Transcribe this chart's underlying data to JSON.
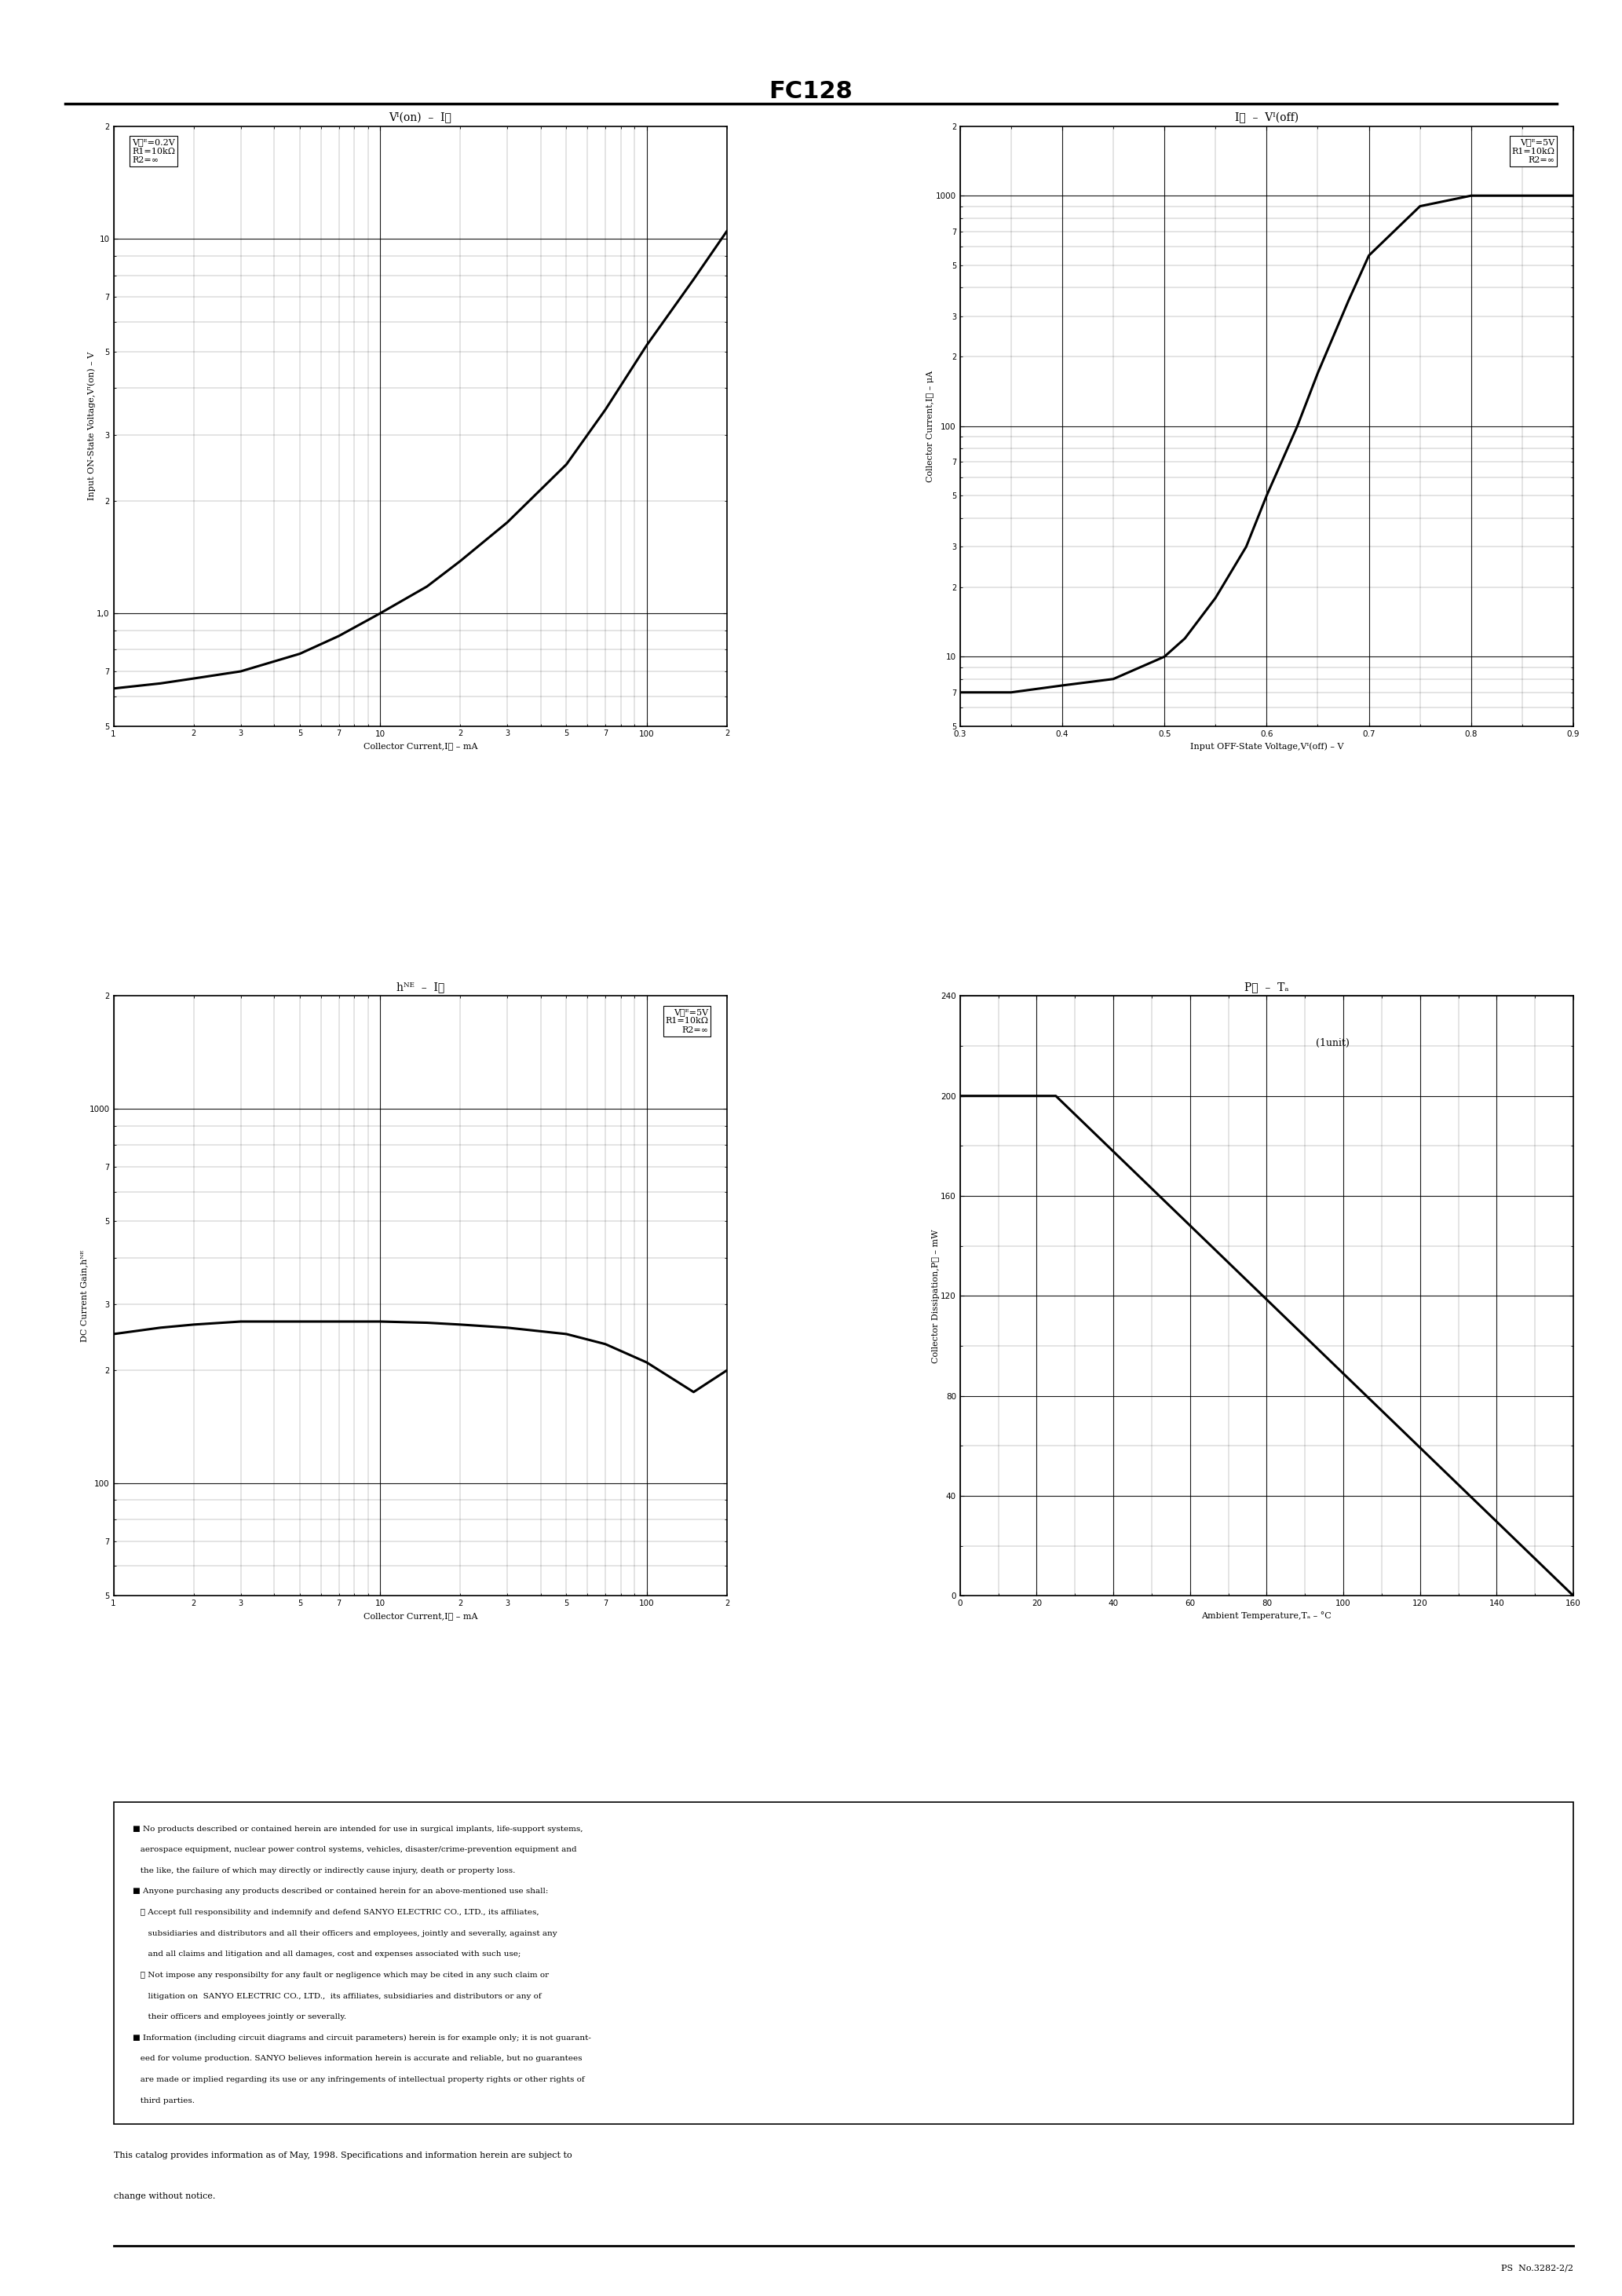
{
  "title": "FC128",
  "bg_color": "#ffffff",
  "plot1": {
    "title": "Vᴵ(on)  –  Iⲟ",
    "xlabel": "Collector Current,Iⲟ – mA",
    "ylabel": "Input ON-State Voltage,Vᴵ(on) – V",
    "legend_lines": [
      "VⲞᴱ=0.2V",
      "R1=10kΩ",
      "R2=∞"
    ],
    "xmin": 1.0,
    "xmax": 200,
    "ymin": 0.5,
    "ymax": 20,
    "curve_x": [
      1.0,
      1.5,
      2.0,
      3.0,
      5.0,
      7.0,
      10,
      15,
      20,
      30,
      50,
      70,
      100,
      150,
      200
    ],
    "curve_y": [
      0.63,
      0.65,
      0.67,
      0.7,
      0.78,
      0.87,
      1.0,
      1.18,
      1.38,
      1.75,
      2.5,
      3.5,
      5.2,
      7.8,
      10.5
    ]
  },
  "plot2": {
    "title": "Iⲟ  –  Vᴵ(off)",
    "xlabel": "Input OFF-State Voltage,Vᴵ(off) – V",
    "ylabel": "Collector Current,Iⲟ – μA",
    "legend_lines": [
      "VⲞᴱ=5V",
      "R1=10kΩ",
      "R2=∞"
    ],
    "xmin": 0.3,
    "xmax": 0.9,
    "ymin": 5,
    "ymax": 2000,
    "curve_x": [
      0.3,
      0.35,
      0.4,
      0.45,
      0.5,
      0.52,
      0.55,
      0.58,
      0.6,
      0.63,
      0.65,
      0.68,
      0.7,
      0.75,
      0.8,
      0.85,
      0.9
    ],
    "curve_y": [
      7,
      7,
      7.5,
      8,
      10,
      12,
      18,
      30,
      50,
      100,
      170,
      350,
      550,
      900,
      1000,
      1000,
      1000
    ]
  },
  "plot3": {
    "title": "hᴺᴱ  –  Iⲟ",
    "xlabel": "Collector Current,Iⲟ – mA",
    "ylabel": "DC Current Gain,hᴺᴱ",
    "legend_lines": [
      "VⲞᴱ=5V",
      "R1=10kΩ",
      "R2=∞"
    ],
    "xmin": 1.0,
    "xmax": 200,
    "ymin": 50,
    "ymax": 2000,
    "curve_x": [
      1.0,
      1.5,
      2.0,
      3.0,
      5.0,
      7.0,
      10,
      15,
      20,
      30,
      50,
      70,
      100,
      150,
      200
    ],
    "curve_y": [
      250,
      260,
      265,
      270,
      270,
      270,
      270,
      268,
      265,
      260,
      250,
      235,
      210,
      175,
      200
    ]
  },
  "plot4": {
    "title": "Pⲟ  –  Tₐ",
    "xlabel": "Ambient Temperature,Tₐ – °C",
    "ylabel": "Collector Dissipation,Pⲟ – mW",
    "annotation": "(1unit)",
    "xmin": 0,
    "xmax": 160,
    "ymin": 0,
    "ymax": 240,
    "yticks": [
      0,
      40,
      80,
      120,
      160,
      200,
      240
    ],
    "xticks": [
      0,
      20,
      40,
      60,
      80,
      100,
      120,
      140,
      160
    ],
    "curve_x": [
      0,
      25,
      160
    ],
    "curve_y": [
      200,
      200,
      0
    ]
  },
  "disclaimer": {
    "box_lines": [
      "■ No products described or contained herein are intended for use in surgical implants, life-support systems,",
      "   aerospace equipment, nuclear power control systems, vehicles, disaster/crime-prevention equipment and",
      "   the like, the failure of which may directly or indirectly cause injury, death or property loss.",
      "■ Anyone purchasing any products described or contained herein for an above-mentioned use shall:",
      "   ① Accept full responsibility and indemnify and defend SANYO ELECTRIC CO., LTD., its affiliates,",
      "      subsidiaries and distributors and all their officers and employees, jointly and severally, against any",
      "      and all claims and litigation and all damages, cost and expenses associated with such use;",
      "   ② Not impose any responsibilty for any fault or negligence which may be cited in any such claim or",
      "      litigation on  SANYO ELECTRIC CO., LTD.,  its affiliates, subsidiaries and distributors or any of",
      "      their officers and employees jointly or severally.",
      "■ Information (including circuit diagrams and circuit parameters) herein is for example only; it is not guarant-",
      "   eed for volume production. SANYO believes information herein is accurate and reliable, but no guarantees",
      "   are made or implied regarding its use or any infringements of intellectual property rights or other rights of",
      "   third parties."
    ]
  },
  "catalog_text_line1": "This catalog provides information as of May, 1998. Specifications and information herein are subject to",
  "catalog_text_line2": "change without notice.",
  "ps_text": "PS  No.3282-2/2"
}
